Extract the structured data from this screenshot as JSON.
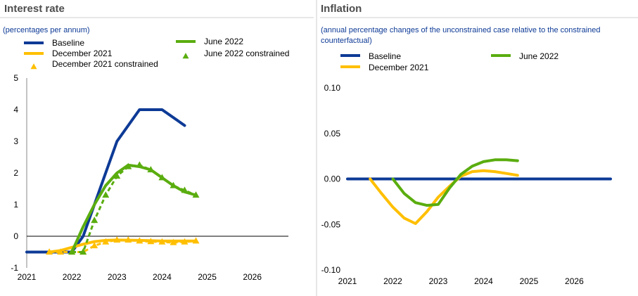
{
  "colors": {
    "baseline": "#0d3a96",
    "dec2021": "#ffbf00",
    "jun2022": "#5aad0f",
    "subtitle": "#0d3a96",
    "text": "#000000",
    "title": "#4d4d4d",
    "divider": "#cfcfcf"
  },
  "chart_data": [
    {
      "type": "line",
      "title": "Interest rate",
      "subtitle": "(percentages per annum)",
      "xlabel": "",
      "ylabel": "",
      "xlim": [
        2021,
        2026.8
      ],
      "ylim": [
        -1,
        5
      ],
      "y_ticks": [
        -1,
        0,
        1,
        2,
        3,
        4,
        5
      ],
      "x_ticks": [
        2021,
        2022,
        2023,
        2024,
        2025,
        2026
      ],
      "zero_line": true,
      "legend": [
        {
          "label": "Baseline",
          "series": "baseline"
        },
        {
          "label": "June 2022",
          "series": "jun2022"
        },
        {
          "label": "December 2021",
          "series": "dec2021"
        },
        {
          "label": "June 2022 constrained",
          "series": "jun2022_constrained"
        },
        {
          "label": "December 2021 constrained",
          "series": "dec2021_constrained"
        }
      ],
      "series": [
        {
          "name": "Baseline",
          "key": "baseline",
          "style": "line",
          "points": [
            [
              2021,
              -0.5
            ],
            [
              2022,
              -0.5
            ],
            [
              2022.25,
              0.0
            ],
            [
              2022.5,
              1.0
            ],
            [
              2022.75,
              2.0
            ],
            [
              2023,
              3.0
            ],
            [
              2023.5,
              4.0
            ],
            [
              2024,
              4.0
            ],
            [
              2024.5,
              3.5
            ]
          ]
        },
        {
          "name": "December 2021",
          "key": "dec2021",
          "style": "line",
          "points": [
            [
              2021.5,
              -0.5
            ],
            [
              2021.75,
              -0.45
            ],
            [
              2022,
              -0.35
            ],
            [
              2022.25,
              -0.25
            ],
            [
              2022.5,
              -0.17
            ],
            [
              2022.75,
              -0.13
            ],
            [
              2023,
              -0.12
            ],
            [
              2023.5,
              -0.13
            ],
            [
              2024,
              -0.15
            ],
            [
              2024.5,
              -0.15
            ],
            [
              2024.75,
              -0.15
            ]
          ]
        },
        {
          "name": "June 2022",
          "key": "jun2022",
          "style": "line",
          "points": [
            [
              2022,
              -0.5
            ],
            [
              2022.25,
              0.3
            ],
            [
              2022.5,
              1.0
            ],
            [
              2022.75,
              1.6
            ],
            [
              2023,
              2.0
            ],
            [
              2023.25,
              2.25
            ],
            [
              2023.5,
              2.2
            ],
            [
              2023.75,
              2.1
            ],
            [
              2024,
              1.85
            ],
            [
              2024.25,
              1.6
            ],
            [
              2024.5,
              1.4
            ],
            [
              2024.75,
              1.3
            ]
          ]
        },
        {
          "name": "December 2021 constrained",
          "key": "dec2021_constrained",
          "style": "dashed-markers",
          "points": [
            [
              2021.5,
              -0.5
            ],
            [
              2021.75,
              -0.5
            ],
            [
              2022,
              -0.5
            ],
            [
              2022.25,
              -0.5
            ],
            [
              2022.5,
              -0.3
            ],
            [
              2022.75,
              -0.18
            ],
            [
              2023,
              -0.12
            ],
            [
              2023.25,
              -0.12
            ],
            [
              2023.5,
              -0.15
            ],
            [
              2023.75,
              -0.17
            ],
            [
              2024,
              -0.18
            ],
            [
              2024.25,
              -0.2
            ],
            [
              2024.5,
              -0.18
            ],
            [
              2024.75,
              -0.15
            ]
          ]
        },
        {
          "name": "June 2022 constrained",
          "key": "jun2022_constrained",
          "style": "dashed-markers",
          "points": [
            [
              2022,
              -0.5
            ],
            [
              2022.25,
              -0.5
            ],
            [
              2022.5,
              0.5
            ],
            [
              2022.75,
              1.3
            ],
            [
              2023,
              1.9
            ],
            [
              2023.25,
              2.2
            ],
            [
              2023.5,
              2.25
            ],
            [
              2023.75,
              2.1
            ],
            [
              2024,
              1.85
            ],
            [
              2024.25,
              1.6
            ],
            [
              2024.5,
              1.45
            ],
            [
              2024.75,
              1.3
            ]
          ]
        }
      ]
    },
    {
      "type": "line",
      "title": "Inflation",
      "subtitle_line1": "(annual percentage changes of the unconstrained case relative to the constrained",
      "subtitle_line2": "counterfactual)",
      "xlabel": "",
      "ylabel": "",
      "xlim": [
        2021,
        2026.8
      ],
      "ylim": [
        -0.1,
        0.1
      ],
      "y_ticks": [
        "-0.10",
        "-0.05",
        "0.00",
        "0.05",
        "0.10"
      ],
      "y_tick_values": [
        -0.1,
        -0.05,
        0,
        0.05,
        0.1
      ],
      "x_ticks": [
        2021,
        2022,
        2023,
        2024,
        2025,
        2026
      ],
      "legend": [
        {
          "label": "Baseline",
          "series": "baseline"
        },
        {
          "label": "June 2022",
          "series": "jun2022"
        },
        {
          "label": "December 2021",
          "series": "dec2021"
        }
      ],
      "series": [
        {
          "name": "Baseline",
          "key": "baseline",
          "style": "line",
          "points": [
            [
              2021,
              0
            ],
            [
              2026.8,
              0
            ]
          ]
        },
        {
          "name": "December 2021",
          "key": "dec2021",
          "style": "line",
          "points": [
            [
              2021.5,
              0
            ],
            [
              2021.75,
              -0.016
            ],
            [
              2022,
              -0.031
            ],
            [
              2022.25,
              -0.043
            ],
            [
              2022.5,
              -0.049
            ],
            [
              2022.75,
              -0.036
            ],
            [
              2023,
              -0.02
            ],
            [
              2023.25,
              -0.008
            ],
            [
              2023.5,
              0.003
            ],
            [
              2023.75,
              0.008
            ],
            [
              2024,
              0.009
            ],
            [
              2024.25,
              0.008
            ],
            [
              2024.5,
              0.006
            ],
            [
              2024.75,
              0.004
            ]
          ]
        },
        {
          "name": "June 2022",
          "key": "jun2022",
          "style": "line",
          "points": [
            [
              2022,
              0
            ],
            [
              2022.25,
              -0.016
            ],
            [
              2022.5,
              -0.026
            ],
            [
              2022.75,
              -0.029
            ],
            [
              2023,
              -0.028
            ],
            [
              2023.25,
              -0.01
            ],
            [
              2023.5,
              0.005
            ],
            [
              2023.75,
              0.014
            ],
            [
              2024,
              0.019
            ],
            [
              2024.25,
              0.021
            ],
            [
              2024.5,
              0.021
            ],
            [
              2024.75,
              0.02
            ]
          ]
        }
      ]
    }
  ]
}
